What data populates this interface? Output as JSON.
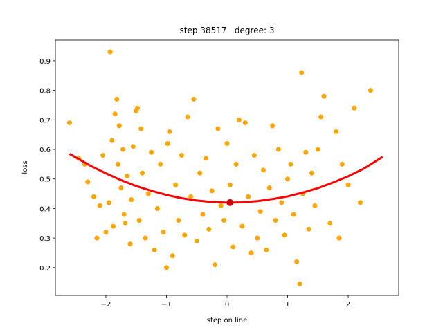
{
  "chart_data": {
    "type": "scatter",
    "title": "step 38517   degree: 3",
    "x_label": "step on line",
    "y_label": "loss",
    "xlim": [
      -2.834,
      2.834
    ],
    "ylim": [
      0.106,
      0.97
    ],
    "xticks": [
      {
        "value": -2,
        "label": "−2"
      },
      {
        "value": -1,
        "label": "−1"
      },
      0,
      1,
      2
    ],
    "yticks": [
      0.2,
      0.3,
      0.4,
      0.5,
      0.6,
      0.7,
      0.8,
      0.9
    ],
    "points": {
      "color": "#ffa500",
      "x": [
        -2.6,
        -2.45,
        -2.35,
        -2.3,
        -2.2,
        -2.15,
        -2.1,
        -2.05,
        -2.0,
        -1.95,
        -1.93,
        -1.9,
        -1.88,
        -1.85,
        -1.82,
        -1.8,
        -1.78,
        -1.75,
        -1.72,
        -1.7,
        -1.68,
        -1.65,
        -1.6,
        -1.58,
        -1.55,
        -1.5,
        -1.48,
        -1.45,
        -1.42,
        -1.4,
        -1.35,
        -1.3,
        -1.25,
        -1.2,
        -1.15,
        -1.1,
        -1.05,
        -1.0,
        -0.98,
        -0.95,
        -0.9,
        -0.85,
        -0.8,
        -0.75,
        -0.7,
        -0.65,
        -0.6,
        -0.55,
        -0.5,
        -0.45,
        -0.4,
        -0.35,
        -0.3,
        -0.25,
        -0.2,
        -0.15,
        -0.1,
        -0.05,
        0.0,
        0.05,
        0.1,
        0.15,
        0.2,
        0.25,
        0.3,
        0.35,
        0.4,
        0.45,
        0.5,
        0.55,
        0.6,
        0.65,
        0.7,
        0.75,
        0.8,
        0.85,
        0.9,
        0.95,
        1.0,
        1.05,
        1.1,
        1.15,
        1.2,
        1.23,
        1.25,
        1.3,
        1.35,
        1.4,
        1.45,
        1.5,
        1.55,
        1.6,
        1.7,
        1.8,
        1.85,
        1.9,
        2.0,
        2.1,
        2.2,
        2.37
      ],
      "y": [
        0.69,
        0.57,
        0.55,
        0.49,
        0.44,
        0.3,
        0.41,
        0.58,
        0.32,
        0.42,
        0.93,
        0.63,
        0.34,
        0.72,
        0.77,
        0.55,
        0.68,
        0.47,
        0.6,
        0.38,
        0.35,
        0.51,
        0.28,
        0.43,
        0.61,
        0.73,
        0.74,
        0.36,
        0.67,
        0.52,
        0.3,
        0.45,
        0.59,
        0.26,
        0.4,
        0.55,
        0.32,
        0.2,
        0.62,
        0.66,
        0.24,
        0.48,
        0.36,
        0.58,
        0.31,
        0.71,
        0.44,
        0.77,
        0.29,
        0.52,
        0.38,
        0.57,
        0.33,
        0.46,
        0.21,
        0.67,
        0.41,
        0.36,
        0.62,
        0.48,
        0.27,
        0.55,
        0.7,
        0.34,
        0.69,
        0.44,
        0.25,
        0.58,
        0.3,
        0.39,
        0.53,
        0.26,
        0.47,
        0.68,
        0.36,
        0.6,
        0.42,
        0.31,
        0.5,
        0.55,
        0.38,
        0.22,
        0.145,
        0.86,
        0.45,
        0.59,
        0.33,
        0.52,
        0.41,
        0.6,
        0.71,
        0.78,
        0.35,
        0.66,
        0.3,
        0.55,
        0.48,
        0.74,
        0.42,
        0.8
      ]
    },
    "curve": {
      "color": "#ff0000",
      "x": [
        -2.6,
        -2.25,
        -2,
        -1.75,
        -1.5,
        -1.25,
        -1,
        -0.75,
        -0.5,
        -0.25,
        0,
        0.25,
        0.5,
        0.75,
        1,
        1.25,
        1.5,
        1.75,
        2,
        2.25,
        2.57
      ],
      "y": [
        0.585,
        0.544,
        0.519,
        0.496,
        0.476,
        0.46,
        0.446,
        0.435,
        0.427,
        0.422,
        0.42,
        0.421,
        0.425,
        0.432,
        0.441,
        0.454,
        0.469,
        0.488,
        0.509,
        0.534,
        0.575
      ]
    },
    "marker": {
      "color": "#cc0000",
      "x": 0.05,
      "y": 0.42
    }
  }
}
